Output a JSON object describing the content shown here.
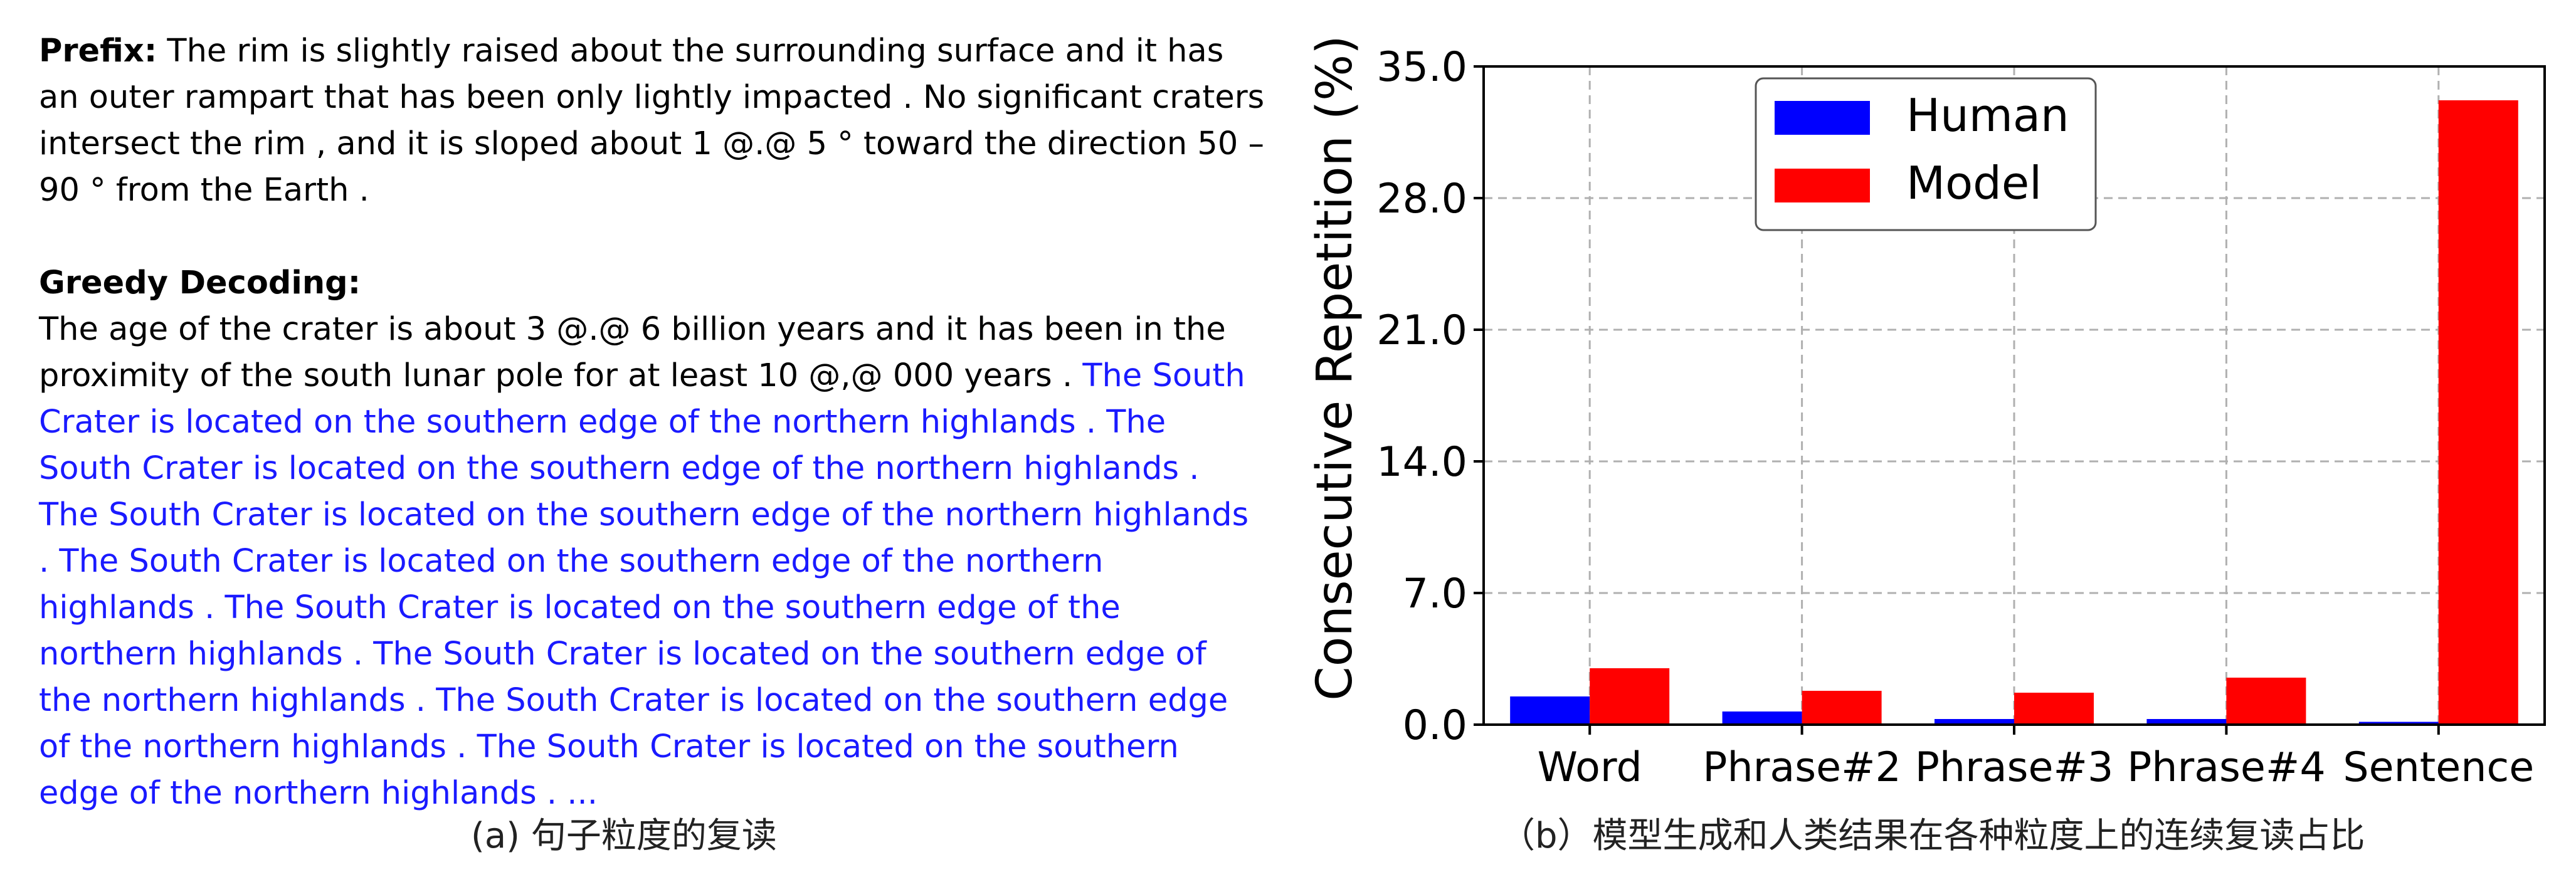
{
  "left_panel": {
    "prefix_label": "Prefix:",
    "prefix_text": " The rim is slightly raised about the surrounding surface and it has an outer rampart that has been only lightly impacted . No significant craters intersect the rim , and it is sloped about 1 @.@ 5 ° toward the direction 50 – 90 ° from the Earth .",
    "greedy_label": "Greedy Decoding:",
    "greedy_text": "The age of the crater is about 3 @.@ 6 billion years and it has been in the proximity of the south lunar pole for at least 10 @,@ 000 years . ",
    "repeated_text": "The South Crater is located on the southern edge of the northern highlands . The South Crater is located on the southern edge of the northern highlands . The South Crater is located on the southern edge of the northern highlands . The South Crater is located on the southern edge of the northern highlands . The South Crater is located on the southern edge of the northern highlands . The South Crater is located on the southern edge of the northern highlands . The South Crater is located on the southern edge of the northern highlands . The South Crater is located on the southern edge of the northern highlands . ...",
    "caption": "(a) 句子粒度的复读"
  },
  "chart_caption": "（b）模型生成和人类结果在各种粒度上的连续复读占比",
  "chart_data": {
    "type": "bar",
    "categories": [
      "Word",
      "Phrase#2",
      "Phrase#3",
      "Phrase#4",
      "Sentence"
    ],
    "series": [
      {
        "name": "Human",
        "color": "#0000ff",
        "values": [
          1.5,
          0.7,
          0.3,
          0.3,
          0.15
        ]
      },
      {
        "name": "Model",
        "color": "#ff0000",
        "values": [
          3.0,
          1.8,
          1.7,
          2.5,
          33.2
        ]
      }
    ],
    "ylabel": "Consecutive Repetition (%)",
    "xlabel": "",
    "ylim": [
      0,
      35
    ],
    "yticks": [
      "0.0",
      "7.0",
      "14.0",
      "21.0",
      "28.0",
      "35.0"
    ],
    "grid": true,
    "legend_position": "top-left"
  }
}
